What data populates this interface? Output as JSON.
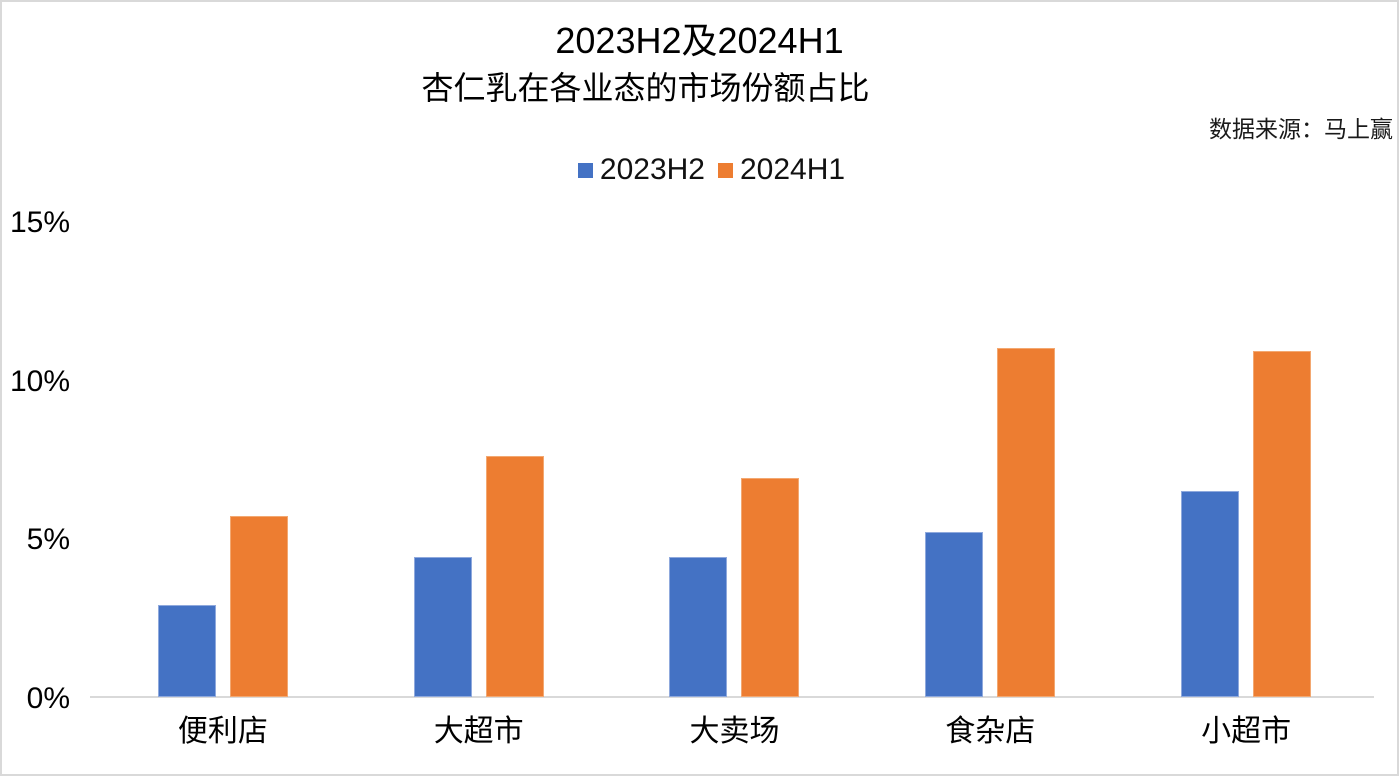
{
  "chart_data": {
    "type": "bar",
    "title_line1": "2023H2及2024H1",
    "title_line2": "杏仁乳在各业态的市场份额占比",
    "source_note": "数据来源：马上赢",
    "categories": [
      "便利店",
      "大超市",
      "大卖场",
      "食杂店",
      "小超市"
    ],
    "series": [
      {
        "name": "2023H2",
        "color": "#4472C4",
        "border_color": "#8fa9dd",
        "values": [
          2.9,
          4.4,
          4.4,
          5.2,
          6.5
        ]
      },
      {
        "name": "2024H1",
        "color": "#ED7D31",
        "border_color": "#f3a871",
        "values": [
          5.7,
          7.6,
          6.9,
          11.0,
          10.9
        ]
      }
    ],
    "xlabel": "",
    "ylabel": "",
    "ylim": [
      0,
      15
    ],
    "yticks": [
      {
        "value": 0,
        "label": "0%"
      },
      {
        "value": 5,
        "label": "5%"
      },
      {
        "value": 10,
        "label": "10%"
      },
      {
        "value": 15,
        "label": "15%"
      }
    ],
    "grid": false,
    "legend_position": "top-center",
    "axis_line_color": "#d9d9d9",
    "unit": "percent"
  }
}
